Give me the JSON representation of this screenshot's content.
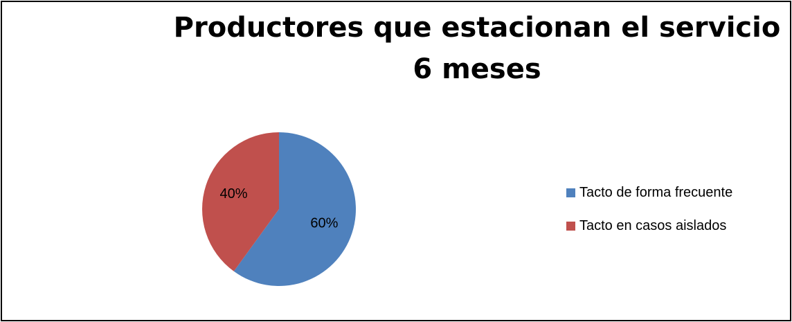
{
  "chart_data": {
    "type": "pie",
    "title": "Productores que estacionan el servicio 6 meses",
    "categories": [
      "Tacto de forma frecuente",
      "Tacto en casos aislados"
    ],
    "values": [
      60,
      40
    ],
    "data_labels": [
      "60%",
      "40%"
    ],
    "colors": [
      "#4F81BD",
      "#C0504D"
    ],
    "start_angle": 0,
    "direction": "clockwise",
    "legend": "right"
  }
}
